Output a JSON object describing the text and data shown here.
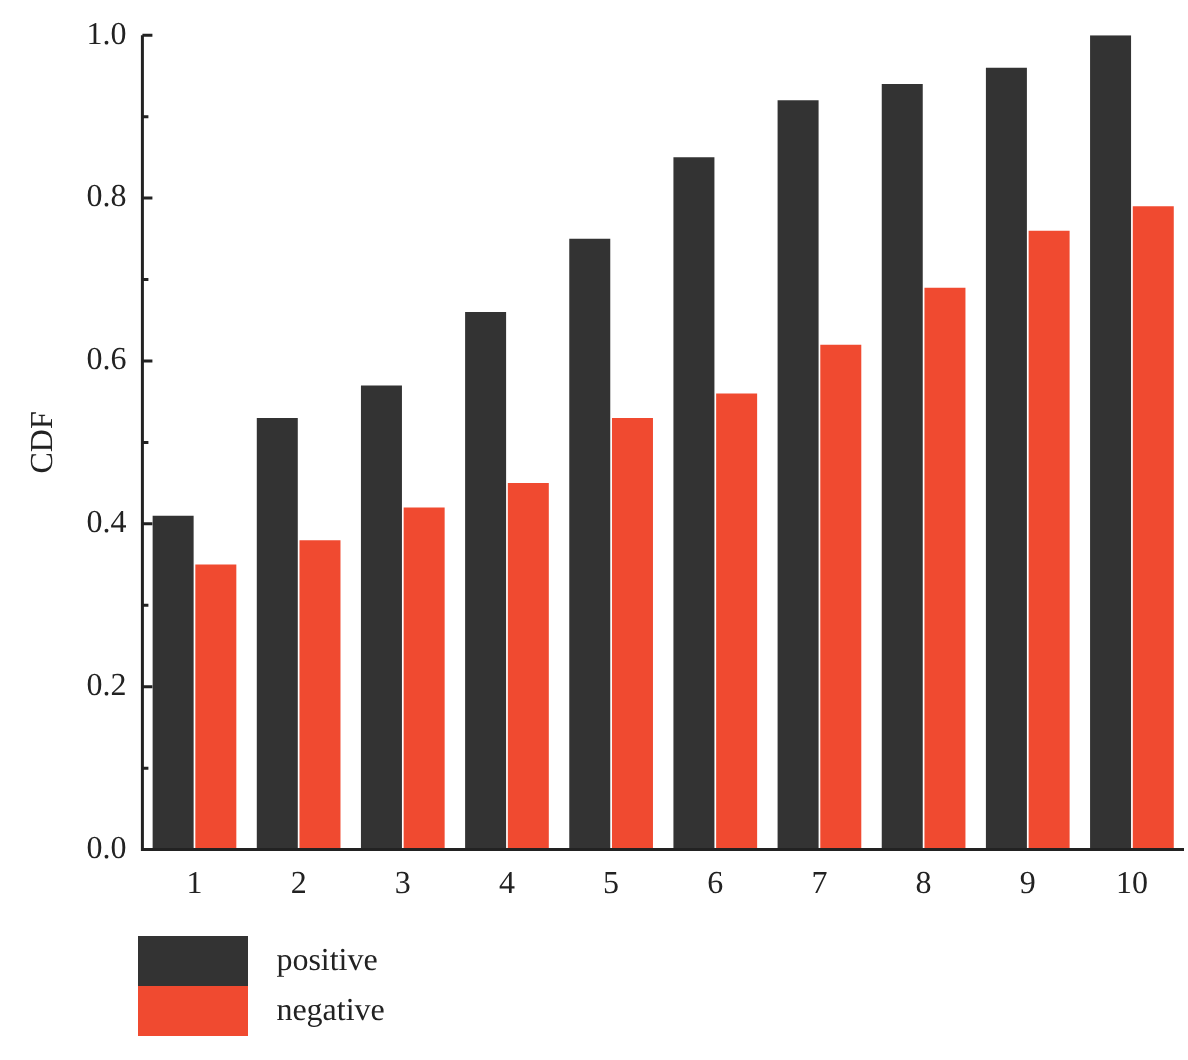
{
  "chart_data": {
    "type": "bar",
    "ylabel": "CDF",
    "categories": [
      "1",
      "2",
      "3",
      "4",
      "5",
      "6",
      "7",
      "8",
      "9",
      "10"
    ],
    "series": [
      {
        "name": "positive",
        "color": "#333333",
        "values": [
          0.41,
          0.53,
          0.57,
          0.66,
          0.75,
          0.85,
          0.92,
          0.94,
          0.96,
          1.0
        ]
      },
      {
        "name": "negative",
        "color": "#f04a30",
        "values": [
          0.35,
          0.38,
          0.42,
          0.45,
          0.53,
          0.56,
          0.62,
          0.69,
          0.76,
          0.79
        ]
      }
    ],
    "ylim": [
      0,
      1.0
    ],
    "yticks": [
      {
        "value": 0,
        "label": "0.0"
      },
      {
        "value": 0.1,
        "label": null
      },
      {
        "value": 0.2,
        "label": "0.2"
      },
      {
        "value": 0.3,
        "label": null
      },
      {
        "value": 0.4,
        "label": "0.4"
      },
      {
        "value": 0.5,
        "label": null
      },
      {
        "value": 0.6,
        "label": "0.6"
      },
      {
        "value": 0.7,
        "label": null
      },
      {
        "value": 0.8,
        "label": "0.8"
      },
      {
        "value": 0.9,
        "label": null
      },
      {
        "value": 1.0,
        "label": "1.0"
      }
    ],
    "legend": "bottom left"
  }
}
